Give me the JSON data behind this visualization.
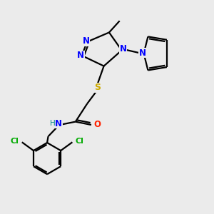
{
  "background_color": "#ebebeb",
  "atom_colors": {
    "N": "#0000ff",
    "S": "#ccaa00",
    "O": "#ff2200",
    "Cl": "#00aa00",
    "NH": "#008888",
    "C": "#000000"
  },
  "bond_color": "#000000",
  "lw": 1.6
}
